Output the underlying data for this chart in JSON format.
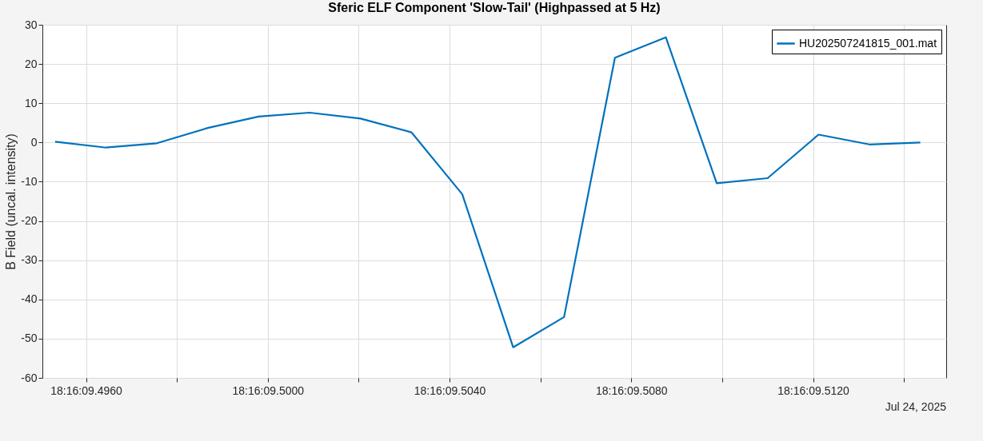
{
  "chart_data": {
    "type": "line",
    "title": "Sferic ELF Component 'Slow-Tail' (Highpassed at 5 Hz)",
    "ylabel": "B Field (uncal. intensity)",
    "annotations": [
      "Jul 24, 2025"
    ],
    "x": [
      "2025-07-24T18:16:09.49532",
      "2025-07-24T18:16:09.49644",
      "2025-07-24T18:16:09.49756",
      "2025-07-24T18:16:09.49868",
      "2025-07-24T18:16:09.49980",
      "2025-07-24T18:16:09.50092",
      "2025-07-24T18:16:09.50204",
      "2025-07-24T18:16:09.50316",
      "2025-07-24T18:16:09.50428",
      "2025-07-24T18:16:09.50540",
      "2025-07-24T18:16:09.50652",
      "2025-07-24T18:16:09.50764",
      "2025-07-24T18:16:09.50876",
      "2025-07-24T18:16:09.50988",
      "2025-07-24T18:16:09.51100",
      "2025-07-24T18:16:09.51212",
      "2025-07-24T18:16:09.51324",
      "2025-07-24T18:16:09.51436"
    ],
    "series": [
      {
        "name": "HU202507241815_001.mat",
        "color": "#0072bd",
        "values": [
          0.2,
          -1.3,
          -0.2,
          3.7,
          6.6,
          7.6,
          6.1,
          2.6,
          -13.2,
          -52.2,
          -44.5,
          21.6,
          26.8,
          -10.4,
          -9.1,
          2.0,
          -0.5,
          0.0
        ]
      }
    ],
    "xlim": [
      "2025-07-24T18:16:09.49504",
      "2025-07-24T18:16:09.51493"
    ],
    "xticks": [
      {
        "value": "2025-07-24T18:16:09.496",
        "label": "18:16:09.4960"
      },
      {
        "value": "2025-07-24T18:16:09.498",
        "label": null
      },
      {
        "value": "2025-07-24T18:16:09.500",
        "label": "18:16:09.5000"
      },
      {
        "value": "2025-07-24T18:16:09.502",
        "label": null
      },
      {
        "value": "2025-07-24T18:16:09.504",
        "label": "18:16:09.5040"
      },
      {
        "value": "2025-07-24T18:16:09.506",
        "label": null
      },
      {
        "value": "2025-07-24T18:16:09.508",
        "label": "18:16:09.5080"
      },
      {
        "value": "2025-07-24T18:16:09.510",
        "label": null
      },
      {
        "value": "2025-07-24T18:16:09.512",
        "label": "18:16:09.5120"
      },
      {
        "value": "2025-07-24T18:16:09.514",
        "label": null
      }
    ],
    "ylim": [
      -60,
      30
    ],
    "yticks": [
      -60,
      -50,
      -40,
      -30,
      -20,
      -10,
      0,
      10,
      20,
      30
    ],
    "grid": true,
    "legend": "top right",
    "line_style": "solid",
    "marker": "none"
  }
}
